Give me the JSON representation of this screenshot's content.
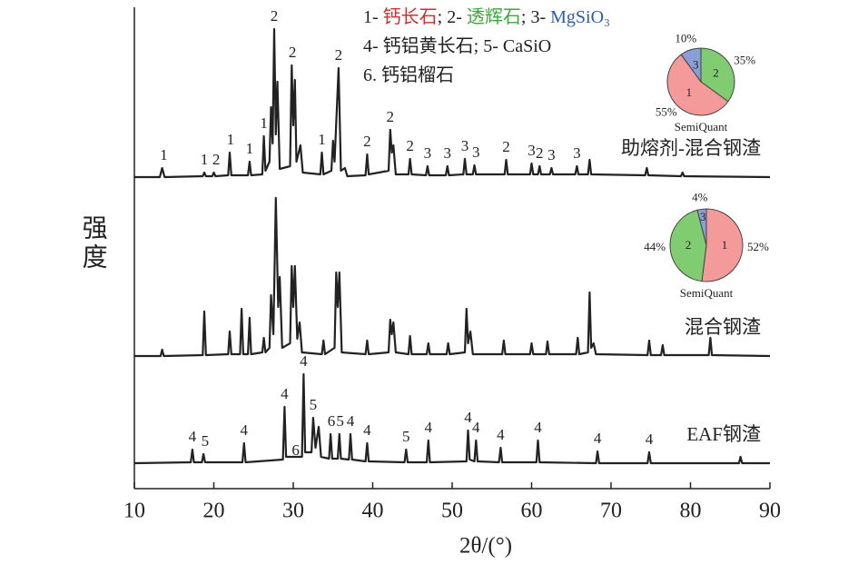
{
  "chart_data": [
    {
      "type": "line",
      "xlabel": "2θ/(°)",
      "ylabel": "强度",
      "xlim": [
        10,
        90
      ],
      "xticks": [
        10,
        20,
        30,
        40,
        50,
        60,
        70,
        80,
        90
      ],
      "ylim": [
        0,
        530
      ],
      "line_color": "#222222",
      "peak_label_colors": {
        "1": "#d03030",
        "2": "#3aa83a",
        "3": "#2a5db0"
      },
      "legend": [
        [
          {
            "text": "1- ",
            "color": "#222222"
          },
          {
            "text": "钙长石",
            "color": "#d03030"
          },
          {
            "text": "; 2- ",
            "color": "#222222"
          },
          {
            "text": "透辉石",
            "color": "#3aa83a"
          },
          {
            "text": "; 3- ",
            "color": "#222222"
          },
          {
            "text": "MgSiO₃",
            "color": "#2a5db0"
          }
        ],
        [
          {
            "text": "4- 钙铝黄长石; 5- CaSiO",
            "color": "#222222"
          }
        ],
        [
          {
            "text": "6. 钙铝榴石",
            "color": "#222222"
          }
        ]
      ],
      "series": [
        {
          "name": "助熔剂-混合钢渣",
          "x": [
            10,
            13.2,
            13.5,
            13.8,
            18.6,
            18.8,
            19,
            19.8,
            20,
            20.2,
            21.8,
            22,
            22.2,
            24.3,
            24.5,
            24.7,
            26.1,
            26.3,
            26.5,
            27,
            27.2,
            27.4,
            27.6,
            27.8,
            28,
            28.3,
            29.6,
            29.8,
            30,
            30.2,
            30.4,
            30.9,
            31.2,
            33.4,
            33.6,
            33.8,
            34.8,
            35,
            35.2,
            35.7,
            36,
            36.5,
            36.8,
            39.1,
            39.3,
            39.5,
            42,
            42.2,
            42.4,
            42.6,
            42.9,
            44.5,
            44.7,
            44.9,
            46.7,
            46.9,
            47.1,
            49.2,
            49.4,
            49.6,
            51.4,
            51.6,
            51.8,
            52.6,
            52.8,
            53,
            56.6,
            56.8,
            57,
            59.8,
            60,
            60.2,
            60.8,
            61,
            61.2,
            62.3,
            62.5,
            62.7,
            65.5,
            65.7,
            65.9,
            67.1,
            67.3,
            67.5,
            74.3,
            74.5,
            74.7,
            78.8,
            79,
            79.2,
            90
          ],
          "values": [
            343,
            343,
            353,
            343,
            344,
            348,
            344,
            344,
            348,
            344,
            345,
            370,
            345,
            345,
            360,
            345,
            346,
            388,
            350,
            360,
            420,
            380,
            506,
            390,
            448,
            352,
            355,
            466,
            400,
            450,
            360,
            378,
            348,
            346,
            370,
            346,
            350,
            383,
            360,
            463,
            350,
            353,
            344,
            345,
            368,
            346,
            350,
            395,
            370,
            378,
            346,
            346,
            363,
            346,
            345,
            355,
            345,
            345,
            355,
            345,
            346,
            363,
            346,
            346,
            356,
            346,
            346,
            362,
            346,
            346,
            358,
            346,
            346,
            355,
            346,
            346,
            353,
            346,
            346,
            355,
            346,
            346,
            362,
            346,
            345,
            353,
            345,
            344,
            348,
            344,
            343
          ],
          "peak_labels": [
            {
              "text": "1",
              "x": 13.7
            },
            {
              "text": "1",
              "x": 18.8
            },
            {
              "text": "2",
              "x": 20.3
            },
            {
              "text": "1",
              "x": 22.1
            },
            {
              "text": "1",
              "x": 24.5
            },
            {
              "text": "1",
              "x": 26.3
            },
            {
              "text": "2",
              "x": 27.6
            },
            {
              "text": "2",
              "x": 29.9
            },
            {
              "text": "1",
              "x": 33.6
            },
            {
              "text": "2",
              "x": 35.7
            },
            {
              "text": "2",
              "x": 39.3
            },
            {
              "text": "2",
              "x": 42.2
            },
            {
              "text": "2",
              "x": 44.7
            },
            {
              "text": "3",
              "x": 46.9
            },
            {
              "text": "3",
              "x": 49.4
            },
            {
              "text": "3",
              "x": 51.6
            },
            {
              "text": "3",
              "x": 53.0
            },
            {
              "text": "2",
              "x": 56.8
            },
            {
              "text": "3",
              "x": 60.0
            },
            {
              "text": "2",
              "x": 61.0
            },
            {
              "text": "3",
              "x": 62.5
            },
            {
              "text": "3",
              "x": 65.7
            }
          ]
        },
        {
          "name": "混合钢渣",
          "x": [
            10,
            13.3,
            13.5,
            13.7,
            18.6,
            18.8,
            19,
            21.8,
            22,
            22.2,
            23.3,
            23.5,
            23.7,
            24.3,
            24.5,
            24.7,
            26.1,
            26.3,
            26.5,
            27,
            27.2,
            27.5,
            27.8,
            28.1,
            28.3,
            28.6,
            29.6,
            29.8,
            30,
            30.2,
            30.5,
            30.8,
            31.1,
            33.6,
            33.8,
            34,
            35.2,
            35.4,
            35.6,
            35.8,
            36.1,
            39.1,
            39.3,
            39.5,
            42,
            42.2,
            42.4,
            42.6,
            42.9,
            44.5,
            44.7,
            44.9,
            46.8,
            47,
            47.2,
            49.3,
            49.5,
            49.7,
            51.6,
            51.8,
            52,
            52.3,
            52.6,
            56.3,
            56.5,
            56.7,
            59.8,
            60,
            60.2,
            61.8,
            62,
            62.2,
            65.6,
            65.8,
            66,
            67.1,
            67.3,
            67.5,
            67.8,
            68.1,
            74.6,
            74.8,
            75,
            76.3,
            76.5,
            76.7,
            82.3,
            82.5,
            82.7,
            90
          ],
          "values": [
            146,
            146,
            153,
            146,
            147,
            195,
            147,
            148,
            173,
            148,
            148,
            198,
            148,
            148,
            188,
            148,
            150,
            166,
            150,
            155,
            213,
            170,
            320,
            200,
            233,
            155,
            160,
            245,
            200,
            245,
            165,
            183,
            150,
            148,
            163,
            148,
            155,
            238,
            200,
            238,
            150,
            148,
            163,
            148,
            150,
            186,
            170,
            183,
            150,
            148,
            168,
            148,
            148,
            160,
            148,
            148,
            160,
            148,
            150,
            198,
            160,
            173,
            148,
            148,
            163,
            148,
            148,
            160,
            148,
            148,
            162,
            148,
            148,
            166,
            148,
            150,
            216,
            155,
            160,
            148,
            147,
            163,
            147,
            147,
            158,
            147,
            147,
            166,
            147,
            146
          ],
          "peak_labels": []
        },
        {
          "name": "EAF钢渣",
          "x": [
            10,
            17.1,
            17.3,
            17.5,
            18.5,
            18.7,
            18.9,
            23.6,
            23.8,
            24,
            28.7,
            28.9,
            29.1,
            31.1,
            31.3,
            31.5,
            32.3,
            32.5,
            32.8,
            33.2,
            33.5,
            34.5,
            34.7,
            34.9,
            35.6,
            35.8,
            36,
            37,
            37.2,
            37.4,
            39.1,
            39.3,
            39.5,
            44,
            44.2,
            44.4,
            46.8,
            47,
            47.2,
            51.8,
            52,
            52.2,
            52.8,
            53,
            53.2,
            55.9,
            56.1,
            56.3,
            60.6,
            60.8,
            61,
            68.1,
            68.3,
            68.5,
            74.6,
            74.8,
            75,
            86.1,
            86.3,
            86.5,
            90
          ],
          "values": [
            28,
            29,
            43,
            29,
            29,
            38,
            29,
            29,
            50,
            29,
            32,
            90,
            35,
            35,
            126,
            40,
            40,
            78,
            45,
            68,
            35,
            33,
            60,
            33,
            33,
            60,
            33,
            32,
            60,
            32,
            30,
            50,
            30,
            29,
            43,
            29,
            29,
            53,
            29,
            30,
            64,
            32,
            30,
            53,
            30,
            29,
            45,
            29,
            29,
            53,
            29,
            28,
            41,
            28,
            28,
            40,
            28,
            28,
            35,
            28,
            28
          ],
          "peak_labels": [
            {
              "text": "4",
              "x": 17.3
            },
            {
              "text": "5",
              "x": 18.9
            },
            {
              "text": "4",
              "x": 23.8
            },
            {
              "text": "4",
              "x": 28.9
            },
            {
              "text": "6",
              "x": 30.3
            },
            {
              "text": "4",
              "x": 31.3
            },
            {
              "text": "5",
              "x": 32.5
            },
            {
              "text": "6",
              "x": 34.8
            },
            {
              "text": "5",
              "x": 35.9
            },
            {
              "text": "4",
              "x": 37.2
            },
            {
              "text": "4",
              "x": 39.3
            },
            {
              "text": "5",
              "x": 44.2
            },
            {
              "text": "4",
              "x": 47.0
            },
            {
              "text": "4",
              "x": 52.0
            },
            {
              "text": "4",
              "x": 53.0
            },
            {
              "text": "4",
              "x": 56.1
            },
            {
              "text": "4",
              "x": 60.8
            },
            {
              "text": "4",
              "x": 68.3
            },
            {
              "text": "4",
              "x": 74.8
            }
          ]
        }
      ]
    },
    {
      "type": "pie",
      "caption": "SemiQuant",
      "categories": [
        "2",
        "1",
        "3"
      ],
      "values": [
        35,
        55,
        10
      ],
      "value_labels": [
        "35%",
        "55%",
        "10%"
      ],
      "colors": [
        "#80cc70",
        "#f59a9a",
        "#8a9ed8"
      ]
    },
    {
      "type": "pie",
      "caption": "SemiQuant",
      "categories": [
        "1",
        "2",
        "3"
      ],
      "values": [
        52,
        44,
        4
      ],
      "value_labels": [
        "52%",
        "44%",
        "4%"
      ],
      "colors": [
        "#f59a9a",
        "#80cc70",
        "#8a9ed8"
      ]
    }
  ]
}
